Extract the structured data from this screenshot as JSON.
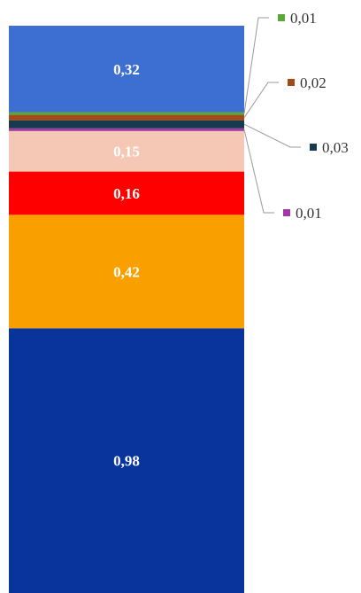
{
  "chart_data": {
    "type": "bar",
    "stacked": true,
    "title": "",
    "xlabel": "",
    "ylabel": "",
    "series": [
      {
        "value": 0.98,
        "label": "0,98",
        "color": "#08349B",
        "label_color": "#ffffff"
      },
      {
        "value": 0.42,
        "label": "0,42",
        "color": "#F9A000",
        "label_color": "#ffffff"
      },
      {
        "value": 0.16,
        "label": "0,16",
        "color": "#FF0000",
        "label_color": "#ffffff"
      },
      {
        "value": 0.15,
        "label": "0,15",
        "color": "#F4C8B4",
        "label_color": "#ffffff"
      },
      {
        "value": 0.01,
        "label": "0,01",
        "color": "#A33AA3",
        "label_color": "#333333",
        "callout": true
      },
      {
        "value": 0.03,
        "label": "0,03",
        "color": "#183A4E",
        "label_color": "#333333",
        "callout": true
      },
      {
        "value": 0.02,
        "label": "0,02",
        "color": "#A34B18",
        "label_color": "#333333",
        "callout": true
      },
      {
        "value": 0.01,
        "label": "0,01",
        "color": "#5BA838",
        "label_color": "#333333",
        "callout": true
      },
      {
        "value": 0.32,
        "label": "0,32",
        "color": "#3D6FD3",
        "label_color": "#ffffff"
      }
    ]
  }
}
